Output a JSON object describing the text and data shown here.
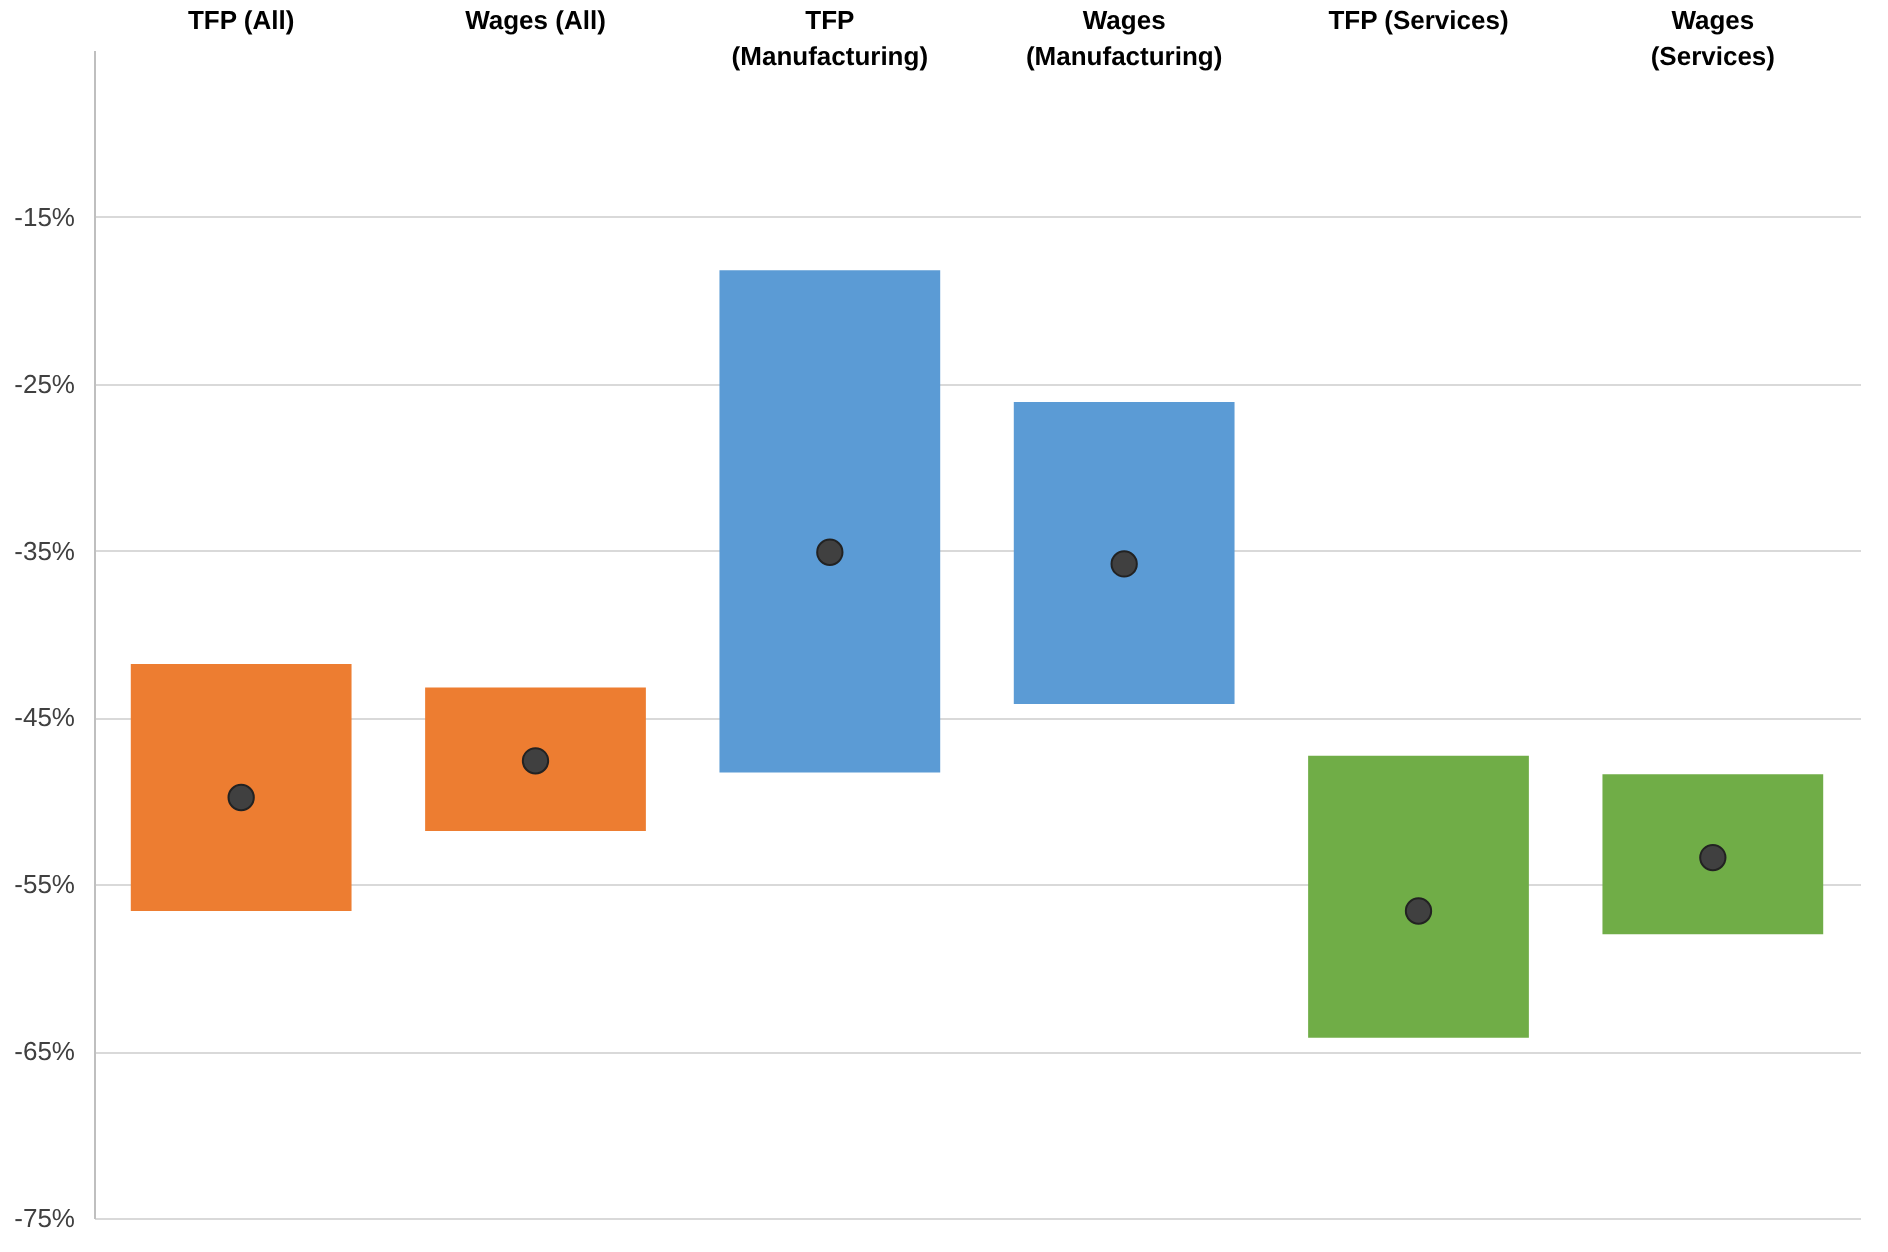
{
  "chart_data": {
    "type": "bar",
    "categories": [
      "TFP (All)",
      "Wages (All)",
      "TFP (Manufacturing)",
      "Wages (Manufacturing)",
      "TFP (Services)",
      "Wages (Services)"
    ],
    "series": [
      {
        "colors": [
          "#ed7d31",
          "#ed7d31",
          "#5b9bd5",
          "#5b9bd5",
          "#70ad47",
          "#70ad47"
        ],
        "base": [
          -56.6,
          -51.8,
          -48.3,
          -44.2,
          -64.2,
          -58.0
        ],
        "values": [
          14.8,
          8.6,
          30.1,
          18.1,
          16.9,
          9.6
        ]
      },
      {
        "type": "scatter",
        "color": "#404040",
        "x": [
          "TFP (All)",
          "Wages (All)",
          "TFP (Manufacturing)",
          "Wages (Manufacturing)",
          "TFP (Services)",
          "Wages (Services)"
        ],
        "values": [
          -49.8,
          -47.6,
          -35.1,
          -35.8,
          -56.6,
          -53.4
        ],
        "marker": "circle"
      }
    ],
    "ylim": [
      -75,
      -5
    ],
    "yticks": [
      {
        "value": -75,
        "label": "-75%"
      },
      {
        "value": -65,
        "label": "-65%"
      },
      {
        "value": -55,
        "label": "-55%"
      },
      {
        "value": -45,
        "label": "-45%"
      },
      {
        "value": -35,
        "label": "-35%"
      },
      {
        "value": -25,
        "label": "-25%"
      },
      {
        "value": -15,
        "label": "-15%"
      }
    ],
    "grid": "y"
  }
}
